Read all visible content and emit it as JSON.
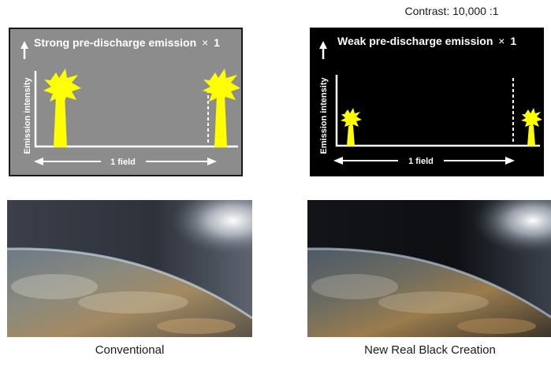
{
  "contrast_label": "Contrast: 10,000 :1",
  "left_panel": {
    "title_text": "Strong pre-discharge emission",
    "multiplier_sign": "×",
    "multiplier_value": "1",
    "y_axis_label": "Emission intensity",
    "field_label": "1 field",
    "background_color": "#8c8c8c",
    "burst_color": "#ffff00"
  },
  "right_panel": {
    "title_text": "Weak pre-discharge emission",
    "multiplier_sign": "×",
    "multiplier_value": "1",
    "y_axis_label": "Emission intensity",
    "field_label": "1 field",
    "background_color": "#000000",
    "burst_color": "#ffff00"
  },
  "photos": {
    "left_caption": "Conventional",
    "right_caption": "New Real Black Creation"
  }
}
